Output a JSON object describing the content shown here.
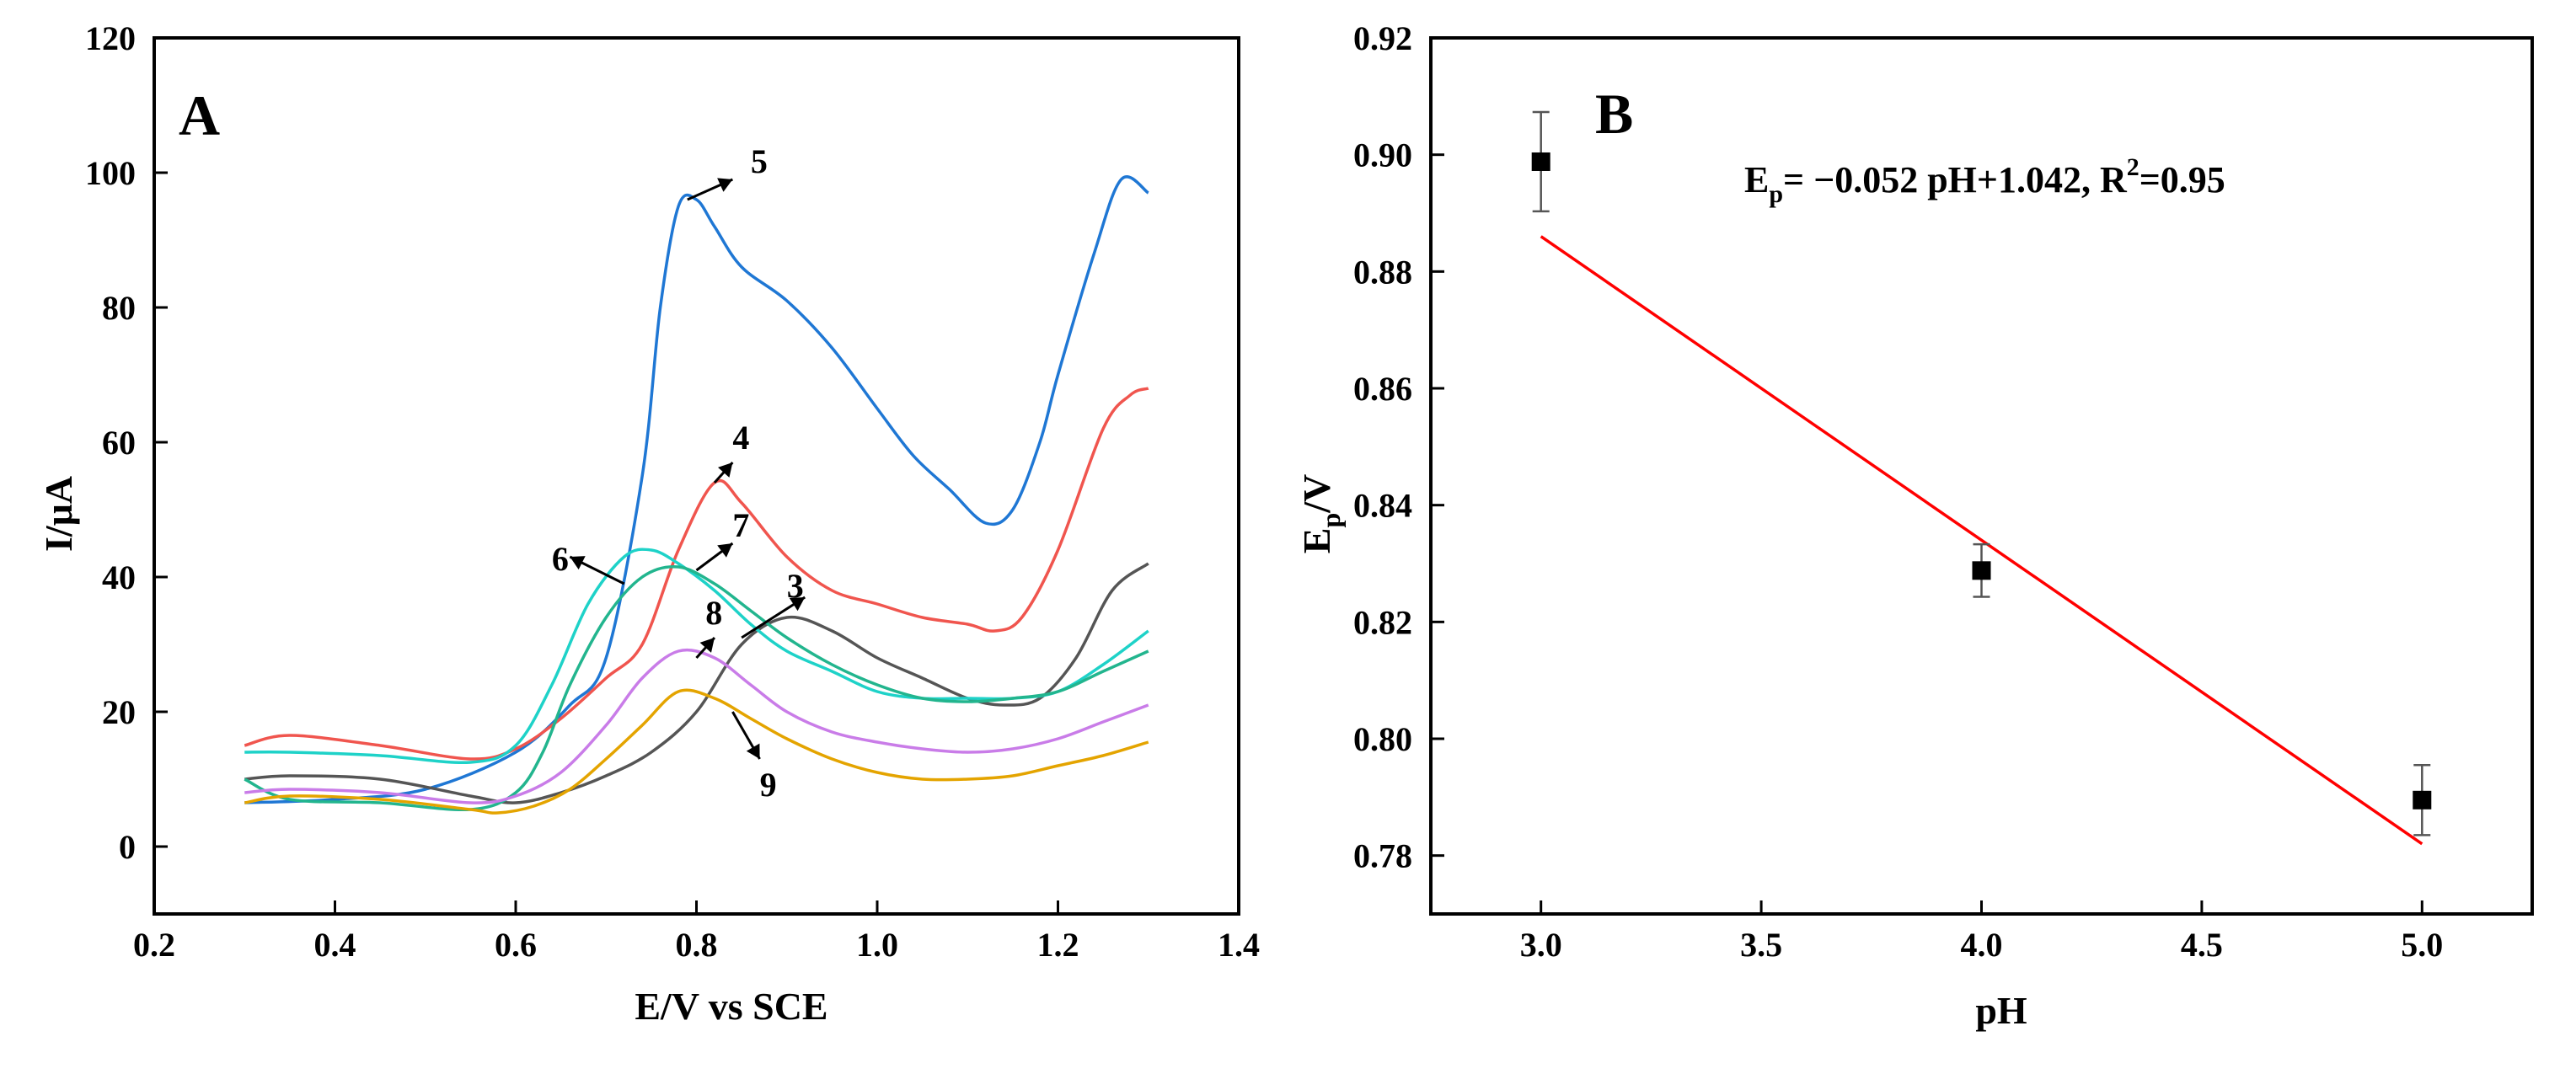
{
  "chart_data": [
    {
      "panel_label": "A",
      "type": "line",
      "xlabel": "E/V vs SCE",
      "ylabel": "I/μA",
      "xlim": [
        0.2,
        1.4
      ],
      "ylim": [
        -10,
        120
      ],
      "xticks": [
        0.2,
        0.4,
        0.6,
        0.8,
        1.0,
        1.2,
        1.4
      ],
      "xtick_labels": [
        "0.2",
        "0.4",
        "0.6",
        "0.8",
        "1.0",
        "1.2",
        "1.4"
      ],
      "yticks": [
        0,
        20,
        40,
        60,
        80,
        100,
        120
      ],
      "ytick_labels": [
        "0",
        "20",
        "40",
        "60",
        "80",
        "100",
        "120"
      ],
      "series": [
        {
          "name": "5",
          "color": "#1f77d4",
          "label_at": [
            0.86,
            100
          ],
          "arrow_from": [
            0.79,
            96
          ],
          "arrow_to": [
            0.84,
            99
          ],
          "x": [
            0.3,
            0.4,
            0.5,
            0.6,
            0.66,
            0.7,
            0.74,
            0.76,
            0.78,
            0.8,
            0.82,
            0.85,
            0.9,
            0.95,
            1.0,
            1.04,
            1.08,
            1.12,
            1.15,
            1.18,
            1.2,
            1.24,
            1.27,
            1.3
          ],
          "y": [
            6.5,
            7,
            8.5,
            14,
            21,
            28,
            55,
            80,
            95,
            96,
            92,
            86,
            81,
            74,
            65,
            58,
            53,
            48,
            50,
            60,
            70,
            88,
            99,
            97
          ]
        },
        {
          "name": "4",
          "color": "#f0554e",
          "label_at": [
            0.84,
            59
          ],
          "arrow_from": [
            0.82,
            54
          ],
          "arrow_to": [
            0.84,
            57
          ],
          "x": [
            0.3,
            0.35,
            0.45,
            0.55,
            0.6,
            0.65,
            0.7,
            0.74,
            0.78,
            0.82,
            0.85,
            0.9,
            0.95,
            1.0,
            1.05,
            1.1,
            1.13,
            1.16,
            1.2,
            1.25,
            1.28,
            1.3
          ],
          "y": [
            15,
            16.5,
            15,
            13,
            14.5,
            19,
            25,
            30,
            44,
            54,
            51,
            43,
            38,
            36,
            34,
            33,
            32,
            34,
            44,
            62,
            67,
            68
          ]
        },
        {
          "name": "3",
          "color": "#555555",
          "label_at": [
            0.9,
            37
          ],
          "arrow_from": [
            0.85,
            31
          ],
          "arrow_to": [
            0.92,
            37
          ],
          "x": [
            0.3,
            0.35,
            0.45,
            0.55,
            0.6,
            0.65,
            0.7,
            0.75,
            0.8,
            0.85,
            0.9,
            0.95,
            1.0,
            1.05,
            1.1,
            1.14,
            1.18,
            1.22,
            1.26,
            1.3
          ],
          "y": [
            10,
            10.5,
            10,
            7.5,
            6.5,
            8,
            10.5,
            14,
            20,
            30,
            34,
            32,
            28,
            25,
            22,
            21,
            22,
            28,
            38,
            42
          ]
        },
        {
          "name": "6",
          "color": "#1ed2c8",
          "label_at": [
            0.64,
            41
          ],
          "arrow_from": [
            0.72,
            39
          ],
          "arrow_to": [
            0.66,
            43
          ],
          "x": [
            0.3,
            0.35,
            0.45,
            0.55,
            0.6,
            0.64,
            0.68,
            0.72,
            0.75,
            0.78,
            0.82,
            0.86,
            0.9,
            0.95,
            1.0,
            1.05,
            1.1,
            1.15,
            1.2,
            1.25,
            1.3
          ],
          "y": [
            14,
            14,
            13.5,
            12.5,
            15,
            24,
            36,
            43,
            44,
            42,
            38,
            33,
            29,
            26,
            23,
            22,
            22,
            22,
            23,
            27,
            32
          ]
        },
        {
          "name": "7",
          "color": "#22b58e",
          "label_at": [
            0.84,
            46
          ],
          "arrow_from": [
            0.8,
            41
          ],
          "arrow_to": [
            0.84,
            45
          ],
          "x": [
            0.3,
            0.35,
            0.45,
            0.55,
            0.6,
            0.63,
            0.66,
            0.7,
            0.74,
            0.78,
            0.82,
            0.86,
            0.9,
            0.95,
            1.0,
            1.05,
            1.1,
            1.15,
            1.2,
            1.25,
            1.3
          ],
          "y": [
            10,
            7,
            6.5,
            5.5,
            8,
            14,
            24,
            34,
            40,
            41.5,
            39,
            35,
            31,
            27,
            24,
            22,
            21.5,
            22,
            23,
            26,
            29
          ]
        },
        {
          "name": "8",
          "color": "#c97ce8",
          "label_at": [
            0.81,
            33
          ],
          "arrow_from": [
            0.8,
            28
          ],
          "arrow_to": [
            0.82,
            31
          ],
          "x": [
            0.3,
            0.35,
            0.45,
            0.55,
            0.6,
            0.65,
            0.7,
            0.74,
            0.78,
            0.82,
            0.86,
            0.9,
            0.95,
            1.0,
            1.05,
            1.1,
            1.15,
            1.2,
            1.25,
            1.3
          ],
          "y": [
            8,
            8.5,
            8,
            6.5,
            7.5,
            11,
            18,
            25,
            29,
            28,
            24,
            20,
            17,
            15.5,
            14.5,
            14,
            14.5,
            16,
            18.5,
            21
          ]
        },
        {
          "name": "9",
          "color": "#e4a400",
          "label_at": [
            0.87,
            7.5
          ],
          "arrow_from": [
            0.84,
            20
          ],
          "arrow_to": [
            0.87,
            13
          ],
          "x": [
            0.3,
            0.35,
            0.45,
            0.55,
            0.58,
            0.62,
            0.66,
            0.7,
            0.74,
            0.78,
            0.82,
            0.86,
            0.9,
            0.95,
            1.0,
            1.05,
            1.1,
            1.15,
            1.2,
            1.25,
            1.3
          ],
          "y": [
            6.5,
            7.5,
            7,
            5.5,
            5,
            6,
            8.5,
            13,
            18,
            23,
            22,
            19,
            16,
            13,
            11,
            10,
            10,
            10.5,
            12,
            13.5,
            15.5
          ]
        }
      ]
    },
    {
      "panel_label": "B",
      "type": "scatter",
      "xlabel": "pH",
      "ylabel_main": "E",
      "ylabel_sub": "p",
      "ylabel_tail": "/V",
      "xlim": [
        2.75,
        5.25
      ],
      "ylim": [
        0.77,
        0.92
      ],
      "xticks": [
        3.0,
        3.5,
        4.0,
        4.5,
        5.0
      ],
      "xtick_labels": [
        "3.0",
        "3.5",
        "4.0",
        "4.5",
        "5.0"
      ],
      "yticks": [
        0.78,
        0.8,
        0.82,
        0.84,
        0.86,
        0.88,
        0.9,
        0.92
      ],
      "ytick_labels": [
        "0.78",
        "0.80",
        "0.82",
        "0.84",
        "0.86",
        "0.88",
        "0.90",
        "0.92"
      ],
      "points": {
        "x": [
          3.0,
          4.0,
          5.0
        ],
        "y": [
          0.8988,
          0.8288,
          0.7895
        ],
        "err": [
          0.0085,
          0.0045,
          0.006
        ]
      },
      "fit": {
        "slope": -0.052,
        "intercept": 1.042,
        "x_range": [
          3.0,
          5.0
        ],
        "color": "#ff0000"
      },
      "equation": {
        "main": "E",
        "sub": "p",
        "mid": "= −0.052 pH+1.042, R",
        "sup": "2",
        "tail": "=0.95"
      }
    }
  ]
}
